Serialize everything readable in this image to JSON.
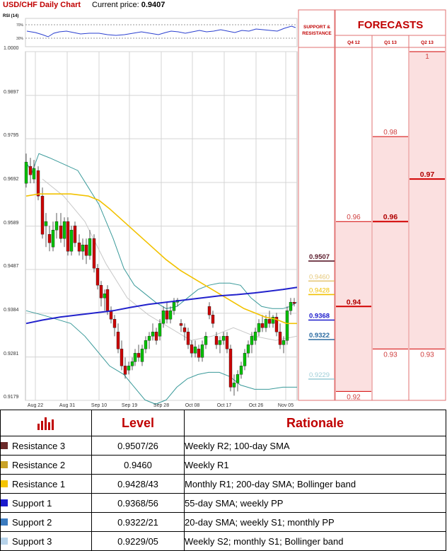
{
  "header": {
    "title": "USD/CHF Daily Chart",
    "price_label": "Current price:",
    "price_value": "0.9407",
    "rsi_label": "RSI (14)",
    "rsi_ticks": [
      "70%",
      "30%"
    ]
  },
  "chart_data": {
    "type": "candlestick",
    "title": "USD/CHF Daily Chart",
    "ylim": [
      0.9179,
      1.0
    ],
    "y_ticks": [
      "0.9179",
      "0.9281",
      "0.9384",
      "0.9487",
      "0.9589",
      "0.9692",
      "0.9795",
      "0.9897",
      "1.0000"
    ],
    "x_ticks": [
      "Aug 22",
      "Aug 31",
      "Sep 10",
      "Sep 19",
      "Sep 28",
      "Oct 08",
      "Oct 17",
      "Oct 26",
      "Nov 05"
    ],
    "colors": {
      "up": "#00c000",
      "down": "#cc0000",
      "sma_fast": "#f2c200",
      "sma_slow": "#2222cc",
      "bollinger": "#3a9a9a"
    },
    "levels": [
      {
        "value": 0.9507,
        "label": "0.9507",
        "color": "#5a1a2a"
      },
      {
        "value": 0.946,
        "label": "0.9460",
        "color": "#e6c87a"
      },
      {
        "value": 0.9428,
        "label": "0.9428",
        "color": "#f0c000"
      },
      {
        "value": 0.9368,
        "label": "0.9368",
        "color": "#1a1acc"
      },
      {
        "value": 0.9322,
        "label": "0.9322",
        "color": "#2a6aa0"
      },
      {
        "value": 0.9229,
        "label": "0.9229",
        "color": "#9fcfd8"
      }
    ]
  },
  "support_panel": {
    "title_line1": "SUPPORT &",
    "title_line2": "RESISTANCE"
  },
  "forecasts": {
    "title": "FORECASTS",
    "columns": [
      {
        "label": "Q4 12",
        "values": [
          {
            "v": 0.96,
            "text": "0.96",
            "bold": false
          },
          {
            "v": 0.94,
            "text": "0.94",
            "bold": true
          },
          {
            "v": 0.92,
            "text": "0.92",
            "bold": false
          }
        ]
      },
      {
        "label": "Q1 13",
        "values": [
          {
            "v": 0.98,
            "text": "0.98",
            "bold": false
          },
          {
            "v": 0.96,
            "text": "0.96",
            "bold": true
          },
          {
            "v": 0.93,
            "text": "0.93",
            "bold": false
          }
        ]
      },
      {
        "label": "Q2 13",
        "values": [
          {
            "v": 1.0,
            "text": "1",
            "bold": false
          },
          {
            "v": 0.97,
            "text": "0.97",
            "bold": true
          },
          {
            "v": 0.93,
            "text": "0.93",
            "bold": false
          }
        ]
      }
    ]
  },
  "table": {
    "headers": {
      "level": "Level",
      "rationale": "Rationale"
    },
    "rows": [
      {
        "name": "Resistance 3",
        "level": "0.9507/26",
        "rationale": "Weekly R2; 100-day SMA",
        "color": "#6b2a2a"
      },
      {
        "name": "Resistance 2",
        "level": "0.9460",
        "rationale": "Weekly R1",
        "color": "#c9a227"
      },
      {
        "name": "Resistance 1",
        "level": "0.9428/43",
        "rationale": "Monthly R1; 200-day SMA; Bollinger band",
        "color": "#f5c400"
      },
      {
        "name": "Support 1",
        "level": "0.9368/56",
        "rationale": "55-day SMA; weekly PP",
        "color": "#1a1acc"
      },
      {
        "name": "Support 2",
        "level": "0.9322/21",
        "rationale": "20-day SMA; weekly S1; monthly PP",
        "color": "#3b7bbf"
      },
      {
        "name": "Support 3",
        "level": "0.9229/05",
        "rationale": "Weekly S2; monthly S1; Bollinger band",
        "color": "#b7d3ea"
      }
    ]
  }
}
